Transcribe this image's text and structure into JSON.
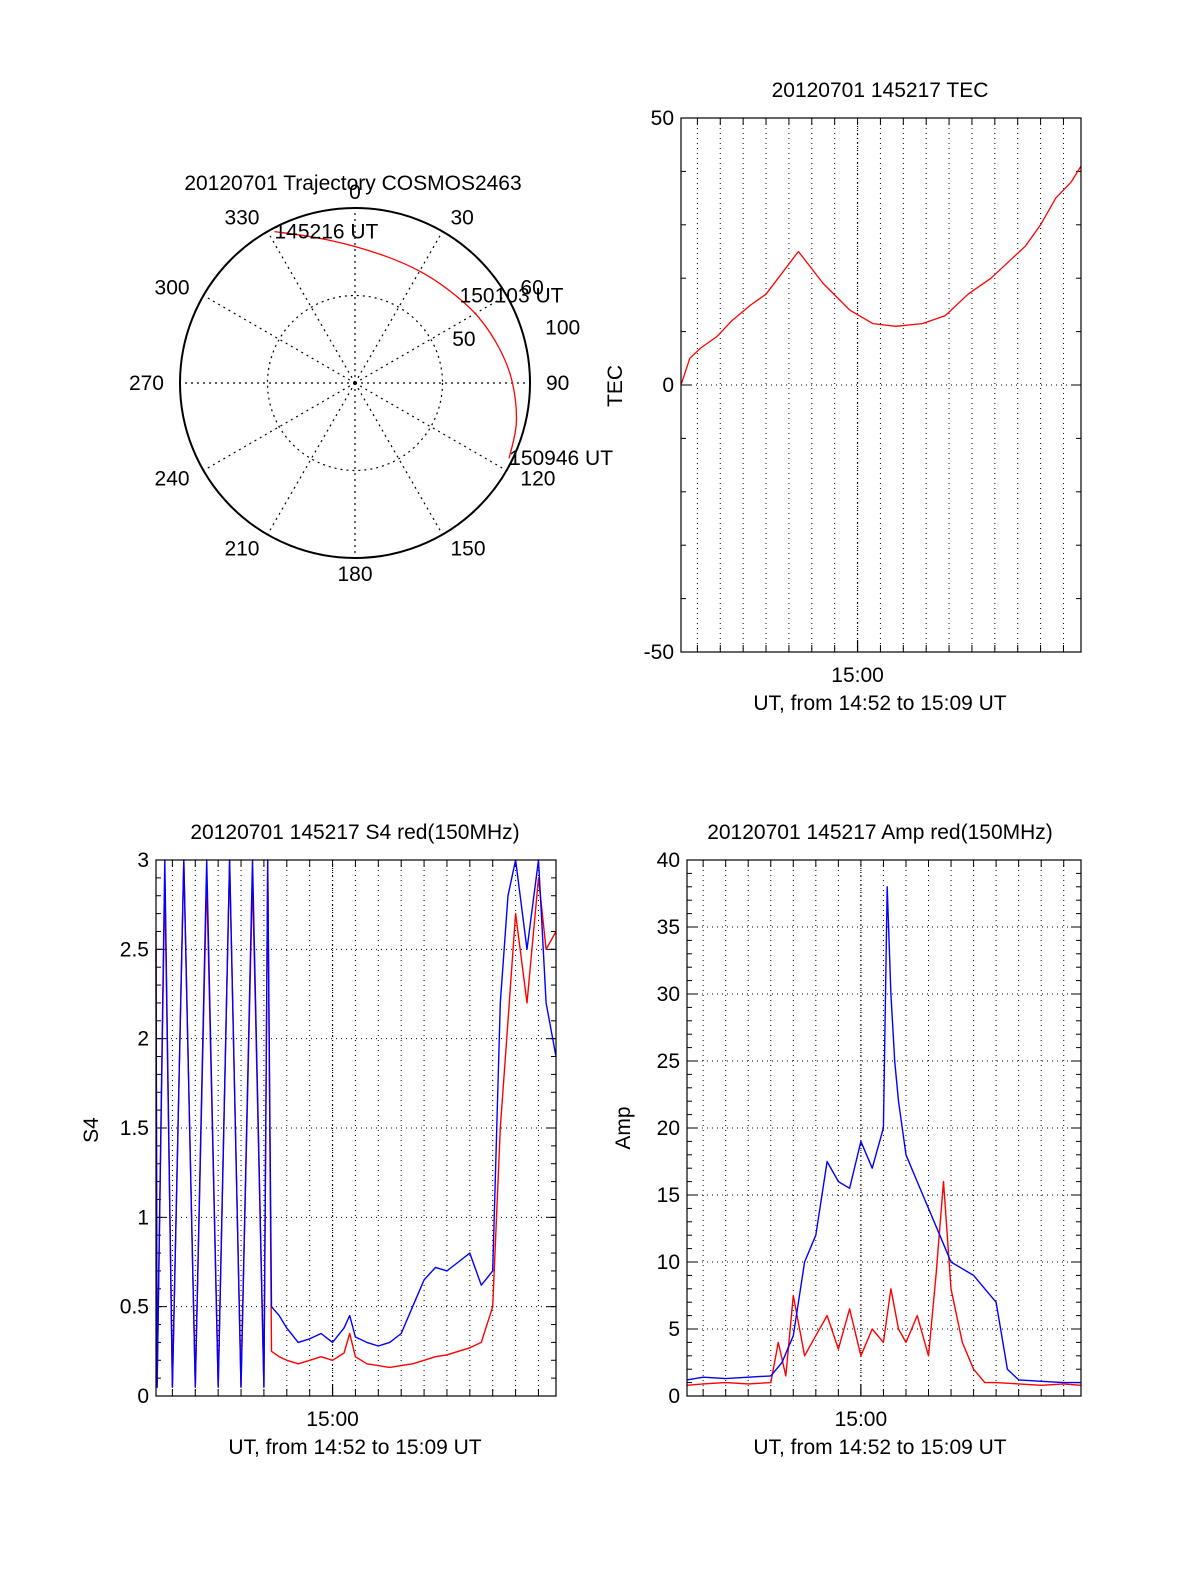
{
  "chart_data": [
    {
      "type": "polar",
      "title": "20120701 Trajectory COSMOS2463",
      "angle_ticks": [
        "0",
        "30",
        "60",
        "90",
        "120",
        "150",
        "180",
        "210",
        "240",
        "270",
        "300",
        "330"
      ],
      "radius_ticks": [
        "50",
        "100"
      ],
      "radius_max": 100,
      "series": [
        {
          "color": "#ff0000",
          "points": [
            {
              "az": 332,
              "r": 98
            },
            {
              "az": 345,
              "r": 86
            },
            {
              "az": 0,
              "r": 78
            },
            {
              "az": 18,
              "r": 74
            },
            {
              "az": 33,
              "r": 74
            },
            {
              "az": 48,
              "r": 76
            },
            {
              "az": 62,
              "r": 80
            },
            {
              "az": 77,
              "r": 85
            },
            {
              "az": 90,
              "r": 90
            },
            {
              "az": 104,
              "r": 95
            },
            {
              "az": 116,
              "r": 98
            }
          ]
        }
      ],
      "annotations": [
        {
          "text": "145216 UT",
          "az": 332,
          "r": 98
        },
        {
          "text": "150103 UT",
          "az": 50,
          "r": 78
        },
        {
          "text": "150946 UT",
          "az": 116,
          "r": 98
        }
      ]
    },
    {
      "type": "line",
      "title": "20120701 145217 TEC",
      "xlabel": "UT, from 14:52 to 15:09 UT",
      "ylabel": "TEC",
      "xlim": [
        "14:52:17",
        "15:09:46"
      ],
      "ylim": [
        -50,
        50
      ],
      "yticks": [
        "50",
        "0",
        "-50"
      ],
      "xticks": [
        "15:00"
      ],
      "grid": true,
      "series": [
        {
          "color": "#ff0000",
          "x": [
            "14:52:17",
            "14:52:40",
            "14:53:10",
            "14:53:50",
            "14:54:30",
            "14:55:20",
            "14:56:00",
            "14:57:25",
            "14:58:30",
            "14:59:40",
            "15:00:40",
            "15:01:40",
            "15:02:50",
            "15:03:50",
            "15:04:50",
            "15:05:50",
            "15:06:50",
            "15:07:20",
            "15:08:00",
            "15:08:40",
            "15:09:20",
            "15:09:46"
          ],
          "y": [
            0,
            5,
            7,
            9,
            12,
            15,
            17,
            25,
            19,
            14,
            11.5,
            11,
            11.5,
            13,
            17,
            20,
            24,
            26,
            30,
            35,
            38,
            41
          ]
        }
      ]
    },
    {
      "type": "line",
      "title": "20120701 145217 S4 red(150MHz)",
      "xlabel": "UT, from 14:52 to 15:09 UT",
      "ylabel": "S4",
      "xlim": [
        "14:52:17",
        "15:09:46"
      ],
      "ylim": [
        0,
        3
      ],
      "yticks": [
        "3",
        "2.5",
        "2",
        "1.5",
        "1",
        "0.5",
        "0"
      ],
      "xticks": [
        "15:00"
      ],
      "grid": true,
      "series": [
        {
          "color": "#ff0000",
          "x": [
            "14:52:17",
            "14:52:20",
            "14:52:40",
            "14:53:00",
            "14:53:30",
            "14:54:00",
            "14:54:30",
            "14:55:00",
            "14:55:30",
            "14:56:00",
            "14:56:30",
            "14:57:00",
            "14:57:10",
            "14:57:20",
            "14:57:40",
            "14:58:00",
            "14:58:30",
            "14:59:00",
            "14:59:30",
            "15:00:00",
            "15:00:30",
            "15:00:45",
            "15:01:00",
            "15:01:30",
            "15:02:00",
            "15:02:30",
            "15:03:00",
            "15:03:30",
            "15:04:00",
            "15:04:30",
            "15:05:00",
            "15:05:30",
            "15:06:00",
            "15:06:30",
            "15:07:00",
            "15:07:20",
            "15:07:40",
            "15:08:00",
            "15:08:30",
            "15:09:00",
            "15:09:20",
            "15:09:46"
          ],
          "y": [
            2.6,
            0.05,
            2.9,
            0.05,
            3.0,
            0.05,
            2.9,
            0.05,
            3.0,
            0.05,
            2.9,
            0.05,
            3.0,
            0.25,
            0.22,
            0.2,
            0.18,
            0.2,
            0.22,
            0.2,
            0.24,
            0.35,
            0.22,
            0.18,
            0.17,
            0.16,
            0.17,
            0.18,
            0.2,
            0.22,
            0.23,
            0.25,
            0.27,
            0.3,
            0.5,
            1.5,
            2.1,
            2.7,
            2.2,
            2.9,
            2.5,
            2.6
          ]
        },
        {
          "color": "#0000ff",
          "x": [
            "14:52:17",
            "14:52:20",
            "14:52:40",
            "14:53:00",
            "14:53:30",
            "14:54:00",
            "14:54:30",
            "14:55:00",
            "14:55:30",
            "14:56:00",
            "14:56:30",
            "14:57:00",
            "14:57:10",
            "14:57:20",
            "14:57:40",
            "14:58:00",
            "14:58:30",
            "14:59:00",
            "14:59:30",
            "15:00:00",
            "15:00:30",
            "15:00:45",
            "15:01:00",
            "15:01:30",
            "15:02:00",
            "15:02:30",
            "15:03:00",
            "15:03:30",
            "15:04:00",
            "15:04:30",
            "15:05:00",
            "15:05:30",
            "15:06:00",
            "15:06:30",
            "15:07:00",
            "15:07:20",
            "15:07:40",
            "15:08:00",
            "15:08:30",
            "15:09:00",
            "15:09:20",
            "15:09:46"
          ],
          "y": [
            2.5,
            0.05,
            3.0,
            0.05,
            3.0,
            0.05,
            3.0,
            0.05,
            3.0,
            0.05,
            3.0,
            0.05,
            3.0,
            0.5,
            0.45,
            0.38,
            0.3,
            0.32,
            0.35,
            0.3,
            0.38,
            0.45,
            0.33,
            0.3,
            0.28,
            0.3,
            0.35,
            0.5,
            0.65,
            0.72,
            0.7,
            0.75,
            0.8,
            0.62,
            0.7,
            2.2,
            2.8,
            3.0,
            2.5,
            3.0,
            2.2,
            1.9
          ]
        }
      ]
    },
    {
      "type": "line",
      "title": "20120701 145217 Amp red(150MHz)",
      "xlabel": "UT, from 14:52 to 15:09 UT",
      "ylabel": "Amp",
      "xlim": [
        "14:52:17",
        "15:09:46"
      ],
      "ylim": [
        0,
        40
      ],
      "yticks": [
        "40",
        "35",
        "30",
        "25",
        "20",
        "15",
        "10",
        "5",
        "0"
      ],
      "xticks": [
        "15:00"
      ],
      "grid": true,
      "series": [
        {
          "color": "#ff0000",
          "x": [
            "14:52:17",
            "14:53:00",
            "14:54:00",
            "14:55:00",
            "14:56:00",
            "14:56:20",
            "14:56:40",
            "14:57:00",
            "14:57:30",
            "14:58:00",
            "14:58:30",
            "14:59:00",
            "14:59:30",
            "15:00:00",
            "15:00:30",
            "15:01:00",
            "15:01:20",
            "15:01:40",
            "15:02:00",
            "15:02:30",
            "15:03:00",
            "15:03:20",
            "15:03:40",
            "15:04:00",
            "15:04:30",
            "15:05:00",
            "15:05:30",
            "15:06:00",
            "15:07:00",
            "15:08:00",
            "15:09:00",
            "15:09:46"
          ],
          "y": [
            0.8,
            0.9,
            1.0,
            0.9,
            1.0,
            4.0,
            1.5,
            7.5,
            3.0,
            4.5,
            6.0,
            3.5,
            6.5,
            3.0,
            5.0,
            4.0,
            8.0,
            5.0,
            4.0,
            6.0,
            3.0,
            9.0,
            16.0,
            8.0,
            4.0,
            2.0,
            1.0,
            1.0,
            0.9,
            0.8,
            0.9,
            0.8
          ]
        },
        {
          "color": "#0000ff",
          "x": [
            "14:52:17",
            "14:53:00",
            "14:54:00",
            "14:55:00",
            "14:56:00",
            "14:56:30",
            "14:57:00",
            "14:57:30",
            "14:58:00",
            "14:58:30",
            "14:59:00",
            "14:59:30",
            "15:00:00",
            "15:00:30",
            "15:01:00",
            "15:01:10",
            "15:01:20",
            "15:01:30",
            "15:01:40",
            "15:02:00",
            "15:02:30",
            "15:03:00",
            "15:03:30",
            "15:04:00",
            "15:04:30",
            "15:05:00",
            "15:05:30",
            "15:06:00",
            "15:06:30",
            "15:07:00",
            "15:08:00",
            "15:09:00",
            "15:09:46"
          ],
          "y": [
            1.2,
            1.4,
            1.3,
            1.4,
            1.5,
            2.5,
            4.5,
            10.0,
            12.0,
            17.5,
            16.0,
            15.5,
            19.0,
            17.0,
            20.0,
            38.0,
            30.0,
            25.0,
            22.0,
            18.0,
            16.0,
            14.0,
            12.0,
            10.0,
            9.5,
            9.0,
            8.0,
            7.0,
            2.0,
            1.2,
            1.1,
            1.0,
            1.0
          ]
        }
      ]
    }
  ]
}
